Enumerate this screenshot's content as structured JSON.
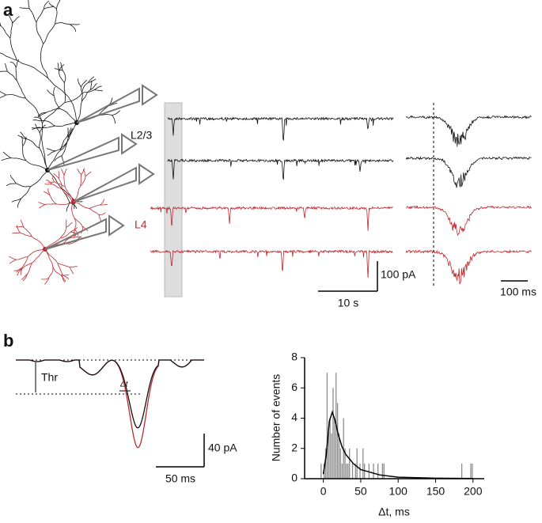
{
  "figure": {
    "panel_a": "a",
    "panel_b": "b",
    "layer_upper": "L2/3",
    "layer_lower": "L4",
    "scale_a_current": "100 pA",
    "scale_a_time": "10 s",
    "scale_a_inset_time": "100 ms",
    "threshold": "Thr",
    "delta_t": "Δt",
    "scale_b_current": "40 pA",
    "scale_b_time": "50 ms"
  },
  "chart_data": {
    "type": "histogram",
    "ylabel": "Number of events",
    "xlabel": "Δt, ms",
    "bins": [
      -6,
      -4,
      -2,
      0,
      2,
      4,
      6,
      8,
      10,
      12,
      14,
      16,
      18,
      20,
      22,
      24,
      26,
      28,
      30,
      32,
      34,
      36,
      38,
      40,
      42,
      44,
      46,
      48,
      50,
      52,
      54,
      56,
      58,
      60,
      62,
      64,
      66,
      68,
      70,
      72,
      74,
      76,
      78,
      80,
      82,
      84,
      184,
      186,
      196,
      198,
      200
    ],
    "counts": [
      0,
      1,
      0,
      1,
      2,
      7,
      3,
      4,
      3,
      6,
      4,
      7,
      5,
      3,
      2,
      1,
      4,
      2,
      1,
      1,
      2,
      0,
      1,
      0,
      1,
      2,
      0,
      1,
      0,
      2,
      1,
      0,
      0,
      1,
      0,
      0,
      1,
      0,
      0,
      1,
      0,
      0,
      1,
      1,
      0,
      0,
      1,
      0,
      1,
      1
    ],
    "color": "#8c8c8c",
    "fit": {
      "x": [
        0,
        4,
        8,
        12,
        16,
        20,
        25,
        30,
        40,
        50,
        75,
        100,
        150,
        200
      ],
      "values": [
        0.3,
        1.6,
        3.8,
        4.4,
        3.8,
        2.9,
        2.1,
        1.6,
        1.0,
        0.6,
        0.25,
        0.1,
        0.03,
        0.01
      ],
      "color": "#000000"
    },
    "xlim": [
      -25,
      215
    ],
    "ylim": [
      0,
      8
    ],
    "xticks": [
      0,
      50,
      100,
      150,
      200
    ],
    "yticks": [
      0,
      2,
      4,
      6,
      8
    ]
  }
}
